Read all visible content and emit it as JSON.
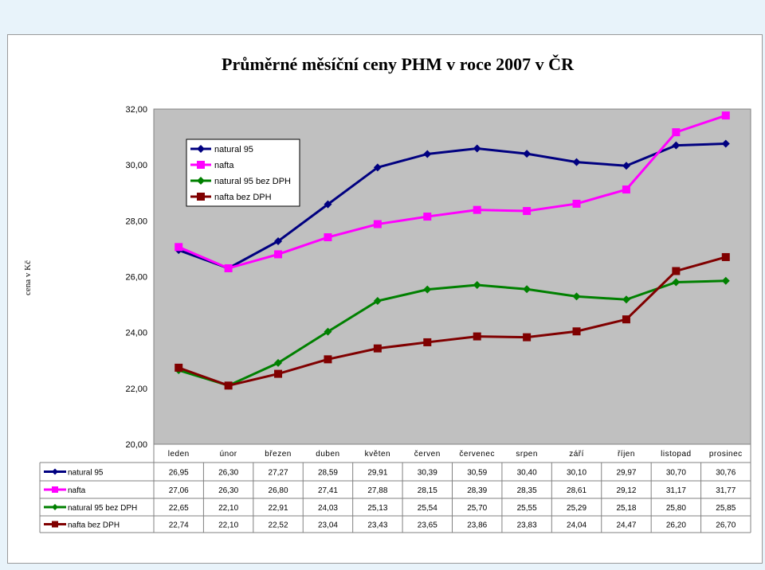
{
  "chart_data": {
    "type": "line",
    "title": "Průměrné měsíční ceny PHM v roce 2007 v ČR",
    "ylabel": "cena v Kč",
    "xlabel": "",
    "ylim": [
      20,
      32
    ],
    "yticks": [
      "20,00",
      "22,00",
      "24,00",
      "26,00",
      "28,00",
      "30,00",
      "32,00"
    ],
    "grid": "off",
    "legend_position": "top-left",
    "categories": [
      "leden",
      "únor",
      "březen",
      "duben",
      "květen",
      "červen",
      "červenec",
      "srpen",
      "září",
      "říjen",
      "listopad",
      "prosinec"
    ],
    "series": [
      {
        "name": "natural 95",
        "color": "#000080",
        "marker": "diamond",
        "values": [
          26.95,
          26.3,
          27.27,
          28.59,
          29.91,
          30.39,
          30.59,
          30.4,
          30.1,
          29.97,
          30.7,
          30.76
        ],
        "labels": [
          "26,95",
          "26,30",
          "27,27",
          "28,59",
          "29,91",
          "30,39",
          "30,59",
          "30,40",
          "30,10",
          "29,97",
          "30,70",
          "30,76"
        ]
      },
      {
        "name": "nafta",
        "color": "#ff00ff",
        "marker": "square",
        "values": [
          27.06,
          26.3,
          26.8,
          27.41,
          27.88,
          28.15,
          28.39,
          28.35,
          28.61,
          29.12,
          31.17,
          31.77
        ],
        "labels": [
          "27,06",
          "26,30",
          "26,80",
          "27,41",
          "27,88",
          "28,15",
          "28,39",
          "28,35",
          "28,61",
          "29,12",
          "31,17",
          "31,77"
        ]
      },
      {
        "name": "natural 95 bez DPH",
        "color": "#008000",
        "marker": "diamond",
        "values": [
          22.65,
          22.1,
          22.91,
          24.03,
          25.13,
          25.54,
          25.7,
          25.55,
          25.29,
          25.18,
          25.8,
          25.85
        ],
        "labels": [
          "22,65",
          "22,10",
          "22,91",
          "24,03",
          "25,13",
          "25,54",
          "25,70",
          "25,55",
          "25,29",
          "25,18",
          "25,80",
          "25,85"
        ]
      },
      {
        "name": "nafta bez DPH",
        "color": "#800000",
        "marker": "square",
        "values": [
          22.74,
          22.1,
          22.52,
          23.04,
          23.43,
          23.65,
          23.86,
          23.83,
          24.04,
          24.47,
          26.2,
          26.7
        ],
        "labels": [
          "22,74",
          "22,10",
          "22,52",
          "23,04",
          "23,43",
          "23,65",
          "23,86",
          "23,83",
          "24,04",
          "24,47",
          "26,20",
          "26,70"
        ]
      }
    ],
    "plot_background": "#c0c0c0"
  }
}
